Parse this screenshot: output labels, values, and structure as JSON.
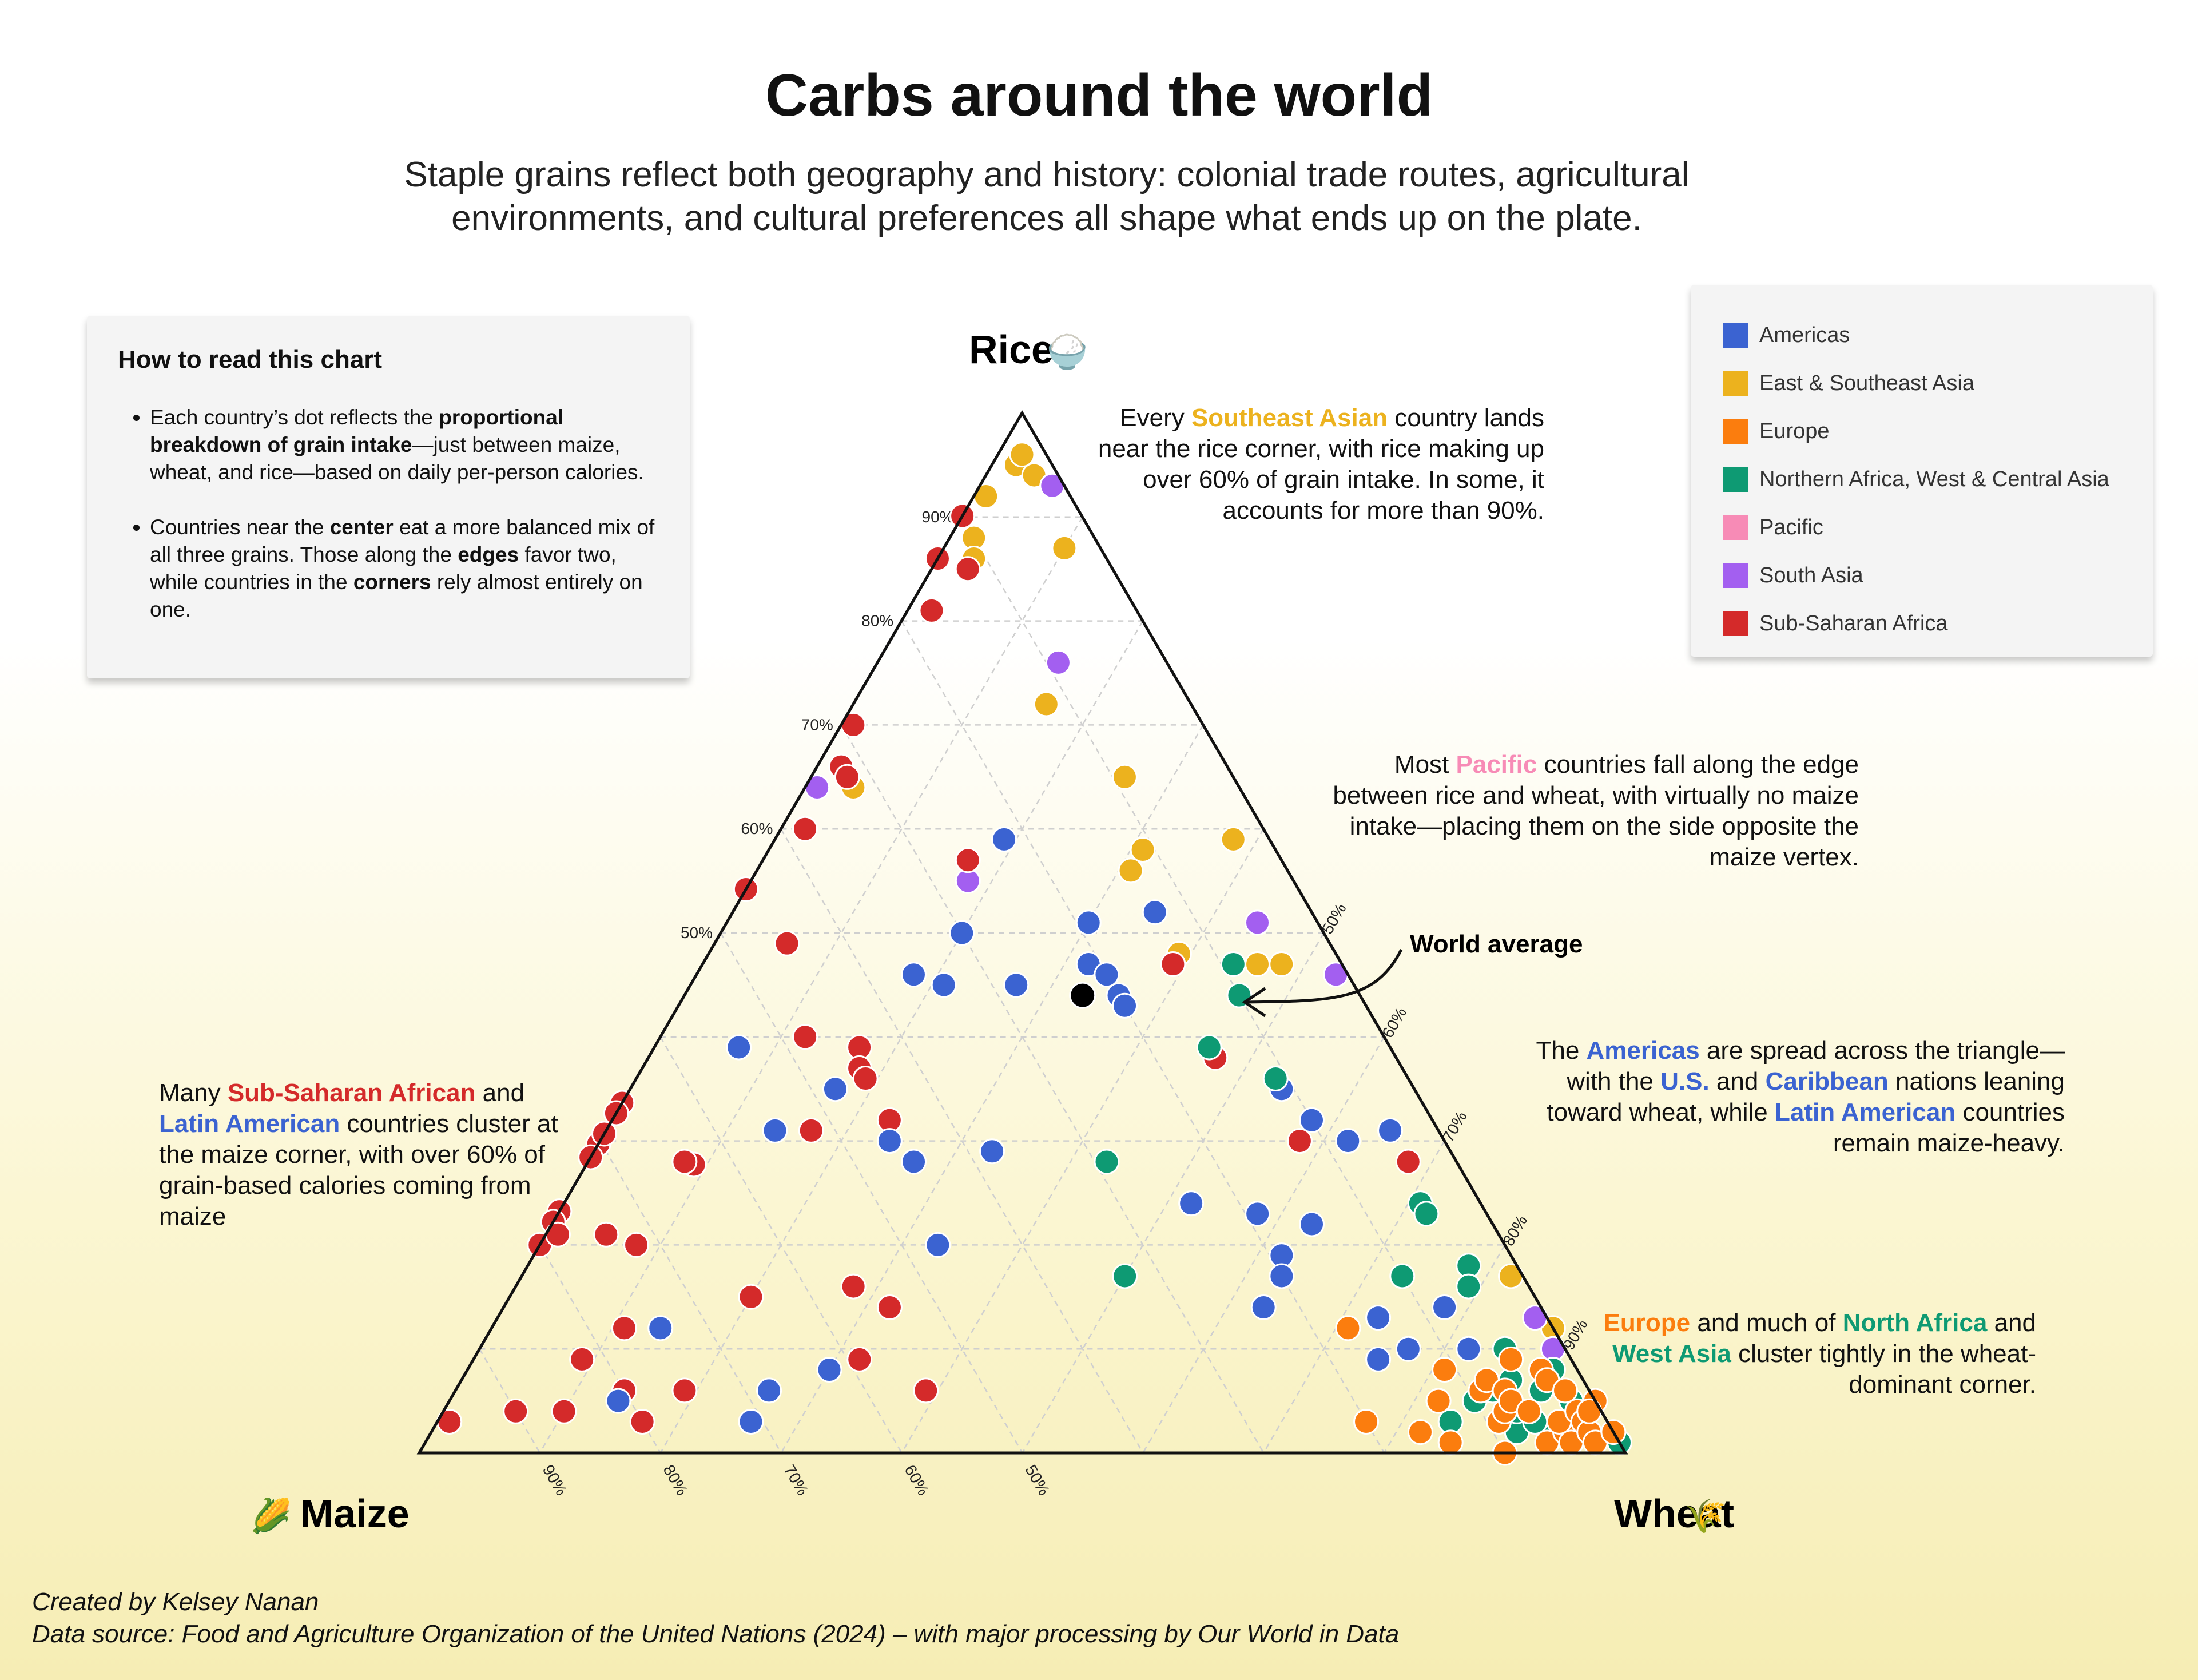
{
  "title": "Carbs around the world",
  "subtitle": "Staple grains reflect both geography and history: colonial trade routes, agricultural environments, and cultural preferences all shape what ends up on the plate.",
  "howto": {
    "heading": "How to read this chart",
    "b1_pre": "Each country’s dot reflects the ",
    "b1_bold": "proportional breakdown of grain intake",
    "b1_post": "—just between maize, wheat, and rice—based on daily per-person calories.",
    "b2_a": "Countries near the ",
    "b2_center": "center",
    "b2_b": " eat a more balanced mix of all three grains. Those along the ",
    "b2_edges": "edges",
    "b2_c": " favor two, while countries in the ",
    "b2_corners": "corners",
    "b2_d": " rely almost entirely on one."
  },
  "legend": [
    {
      "label": "Americas",
      "color": "#3b63d1"
    },
    {
      "label": "East & Southeast Asia",
      "color": "#ecb21e"
    },
    {
      "label": "Europe",
      "color": "#fb7d0e"
    },
    {
      "label": "Northern Africa, West & Central Asia",
      "color": "#0e9a73"
    },
    {
      "label": "Pacific",
      "color": "#f78bb6"
    },
    {
      "label": "South Asia",
      "color": "#a35ff0"
    },
    {
      "label": "Sub-Saharan Africa",
      "color": "#d42a2a"
    }
  ],
  "annotations": {
    "sea_1": "Every ",
    "sea_hl": "Southeast Asian",
    "sea_2": " country lands near the rice corner, with rice making up over 60% of grain intake. In some, it accounts for more than 90%.",
    "pac_1": "Most ",
    "pac_hl": "Pacific",
    "pac_2": " countries fall along the edge between rice and wheat, with virtually no maize intake—placing them on the side opposite the maize vertex.",
    "world": "World average",
    "am_1": "The ",
    "am_hl1": "Americas",
    "am_2": " are spread across the triangle—with the ",
    "am_hl2": "U.S.",
    "am_3": " and ",
    "am_hl3": "Caribbean",
    "am_4": " nations leaning toward wheat, while ",
    "am_hl4": "Latin American",
    "am_5": " countries remain maize-heavy.",
    "ssa_1": "Many ",
    "ssa_hl1": "Sub-Saharan African",
    "ssa_2": " and ",
    "ssa_hl2": "Latin American",
    "ssa_3": " countries cluster at the maize corner, with over 60% of grain-based calories coming from maize",
    "eu_hl1": "Europe",
    "eu_1": " and much of ",
    "eu_hl2": "North Africa",
    "eu_2": " and ",
    "eu_hl3": "West Asia",
    "eu_3": " cluster tightly in the wheat-dominant corner."
  },
  "credits": {
    "author": "Created by Kelsey Nanan",
    "source": "Data source: Food and Agriculture Organization of the United Nations (2024) – with major processing by Our World in Data"
  },
  "chart_data": {
    "type": "ternary-scatter",
    "axes": {
      "top": "Rice",
      "left": "Maize",
      "right": "Wheat",
      "top_icon": "🍚",
      "left_icon": "🌽",
      "right_icon": "🌾"
    },
    "ticks": [
      50,
      60,
      70,
      80,
      90
    ],
    "tick_suffix": "%",
    "world_average": {
      "rice": 44,
      "maize": 23,
      "wheat": 33
    },
    "points": [
      {
        "r": 95,
        "m": 3,
        "w": 2,
        "g": 1
      },
      {
        "r": 96,
        "m": 2,
        "w": 2,
        "g": 1
      },
      {
        "r": 94,
        "m": 2,
        "w": 4,
        "g": 1
      },
      {
        "r": 92,
        "m": 7,
        "w": 1,
        "g": 1
      },
      {
        "r": 88,
        "m": 10,
        "w": 2,
        "g": 1
      },
      {
        "r": 86,
        "m": 11,
        "w": 3,
        "g": 1
      },
      {
        "r": 87,
        "m": 3,
        "w": 10,
        "g": 1
      },
      {
        "r": 72,
        "m": 12,
        "w": 16,
        "g": 1
      },
      {
        "r": 64,
        "m": 32,
        "w": 4,
        "g": 1
      },
      {
        "r": 65,
        "m": 9,
        "w": 26,
        "g": 1
      },
      {
        "r": 58,
        "m": 11,
        "w": 31,
        "g": 1
      },
      {
        "r": 56,
        "m": 13,
        "w": 31,
        "g": 1
      },
      {
        "r": 59,
        "m": 3,
        "w": 38,
        "g": 1
      },
      {
        "r": 48,
        "m": 13,
        "w": 39,
        "g": 1
      },
      {
        "r": 47,
        "m": 7,
        "w": 46,
        "g": 1
      },
      {
        "r": 47,
        "m": 5,
        "w": 48,
        "g": 1
      },
      {
        "r": 17,
        "m": 1,
        "w": 82,
        "g": 1
      },
      {
        "r": 12,
        "m": 0,
        "w": 88,
        "g": 1
      },
      {
        "r": 93,
        "m": 1,
        "w": 6,
        "g": 5
      },
      {
        "r": 76,
        "m": 9,
        "w": 15,
        "g": 5
      },
      {
        "r": 64,
        "m": 35,
        "w": 1,
        "g": 5
      },
      {
        "r": 55,
        "m": 27,
        "w": 18,
        "g": 5
      },
      {
        "r": 51,
        "m": 5,
        "w": 44,
        "g": 5
      },
      {
        "r": 46,
        "m": 1,
        "w": 53,
        "g": 5
      },
      {
        "r": 13,
        "m": 1,
        "w": 86,
        "g": 5
      },
      {
        "r": 10,
        "m": 1,
        "w": 89,
        "g": 5
      },
      {
        "r": 91,
        "m": 10,
        "w": 0,
        "g": 6
      },
      {
        "r": 86,
        "m": 14,
        "w": 0,
        "g": 6
      },
      {
        "r": 85,
        "m": 12,
        "w": 3,
        "g": 6
      },
      {
        "r": 81,
        "m": 17,
        "w": 2,
        "g": 6
      },
      {
        "r": 70,
        "m": 29,
        "w": 1,
        "g": 6
      },
      {
        "r": 66,
        "m": 32,
        "w": 2,
        "g": 6
      },
      {
        "r": 65,
        "m": 32,
        "w": 3,
        "g": 6
      },
      {
        "r": 60,
        "m": 38,
        "w": 2,
        "g": 6
      },
      {
        "r": 57,
        "m": 26,
        "w": 17,
        "g": 6
      },
      {
        "r": 58,
        "m": 49,
        "w": 0,
        "g": 6
      },
      {
        "r": 49,
        "m": 45,
        "w": 6,
        "g": 6
      },
      {
        "r": 47,
        "m": 14,
        "w": 39,
        "g": 6
      },
      {
        "r": 40,
        "m": 48,
        "w": 12,
        "g": 6
      },
      {
        "r": 39,
        "m": 44,
        "w": 17,
        "g": 6
      },
      {
        "r": 37,
        "m": 45,
        "w": 18,
        "g": 6
      },
      {
        "r": 36,
        "m": 45,
        "w": 19,
        "g": 6
      },
      {
        "r": 38,
        "m": 15,
        "w": 47,
        "g": 6
      },
      {
        "r": 34,
        "m": 67,
        "w": 0,
        "g": 6
      },
      {
        "r": 33,
        "m": 68,
        "w": 0,
        "g": 6
      },
      {
        "r": 32,
        "m": 45,
        "w": 23,
        "g": 6
      },
      {
        "r": 30,
        "m": 71,
        "w": 0,
        "g": 6
      },
      {
        "r": 31,
        "m": 52,
        "w": 17,
        "g": 6
      },
      {
        "r": 31,
        "m": 70,
        "w": 0,
        "g": 6
      },
      {
        "r": 29,
        "m": 73,
        "w": 0,
        "g": 6
      },
      {
        "r": 28,
        "m": 64,
        "w": 9,
        "g": 6
      },
      {
        "r": 28,
        "m": 64,
        "w": 8,
        "g": 6
      },
      {
        "r": 30,
        "m": 12,
        "w": 58,
        "g": 6
      },
      {
        "r": 28,
        "m": 4,
        "w": 68,
        "g": 6
      },
      {
        "r": 23,
        "m": 76,
        "w": 0,
        "g": 6
      },
      {
        "r": 22,
        "m": 77,
        "w": 0,
        "g": 6
      },
      {
        "r": 20,
        "m": 80,
        "w": 0,
        "g": 6
      },
      {
        "r": 21,
        "m": 74,
        "w": 5,
        "g": 6
      },
      {
        "r": 20,
        "m": 72,
        "w": 8,
        "g": 6
      },
      {
        "r": 21,
        "m": 78,
        "w": 1,
        "g": 6
      },
      {
        "r": 15,
        "m": 65,
        "w": 20,
        "g": 6
      },
      {
        "r": 16,
        "m": 56,
        "w": 28,
        "g": 6
      },
      {
        "r": 14,
        "m": 54,
        "w": 32,
        "g": 6
      },
      {
        "r": 12,
        "m": 77,
        "w": 11,
        "g": 6
      },
      {
        "r": 9,
        "m": 59,
        "w": 32,
        "g": 6
      },
      {
        "r": 6,
        "m": 75,
        "w": 19,
        "g": 6
      },
      {
        "r": 9,
        "m": 82,
        "w": 9,
        "g": 6
      },
      {
        "r": 6,
        "m": 80,
        "w": 14,
        "g": 6
      },
      {
        "r": 4,
        "m": 90,
        "w": 6,
        "g": 6
      },
      {
        "r": 6,
        "m": 55,
        "w": 39,
        "g": 6
      },
      {
        "r": 3,
        "m": 96,
        "w": 1,
        "g": 6
      },
      {
        "r": 4,
        "m": 86,
        "w": 10,
        "g": 6
      },
      {
        "r": 3,
        "m": 80,
        "w": 17,
        "g": 6
      },
      {
        "r": 59,
        "m": 22,
        "w": 19,
        "g": 0
      },
      {
        "r": 51,
        "m": 19,
        "w": 30,
        "g": 0
      },
      {
        "r": 52,
        "m": 13,
        "w": 35,
        "g": 0
      },
      {
        "r": 50,
        "m": 30,
        "w": 20,
        "g": 0
      },
      {
        "r": 46,
        "m": 36,
        "w": 18,
        "g": 0
      },
      {
        "r": 45,
        "m": 34,
        "w": 21,
        "g": 0
      },
      {
        "r": 45,
        "m": 28,
        "w": 27,
        "g": 0
      },
      {
        "r": 47,
        "m": 21,
        "w": 32,
        "g": 0
      },
      {
        "r": 46,
        "m": 20,
        "w": 34,
        "g": 0
      },
      {
        "r": 44,
        "m": 20,
        "w": 36,
        "g": 0
      },
      {
        "r": 43,
        "m": 20,
        "w": 37,
        "g": 0
      },
      {
        "r": 39,
        "m": 54,
        "w": 7,
        "g": 0
      },
      {
        "r": 35,
        "m": 48,
        "w": 17,
        "g": 0
      },
      {
        "r": 31,
        "m": 55,
        "w": 14,
        "g": 0
      },
      {
        "r": 30,
        "m": 46,
        "w": 24,
        "g": 0
      },
      {
        "r": 29,
        "m": 38,
        "w": 33,
        "g": 0
      },
      {
        "r": 28,
        "m": 45,
        "w": 27,
        "g": 0
      },
      {
        "r": 20,
        "m": 47,
        "w": 33,
        "g": 0
      },
      {
        "r": 12,
        "m": 74,
        "w": 14,
        "g": 0
      },
      {
        "r": 8,
        "m": 62,
        "w": 30,
        "g": 0
      },
      {
        "r": 6,
        "m": 68,
        "w": 26,
        "g": 0
      },
      {
        "r": 5,
        "m": 81,
        "w": 14,
        "g": 0
      },
      {
        "r": 3,
        "m": 71,
        "w": 26,
        "g": 0
      },
      {
        "r": 35,
        "m": 11,
        "w": 54,
        "g": 0
      },
      {
        "r": 32,
        "m": 10,
        "w": 58,
        "g": 0
      },
      {
        "r": 30,
        "m": 8,
        "w": 62,
        "g": 0
      },
      {
        "r": 24,
        "m": 24,
        "w": 52,
        "g": 0
      },
      {
        "r": 23,
        "m": 19,
        "w": 58,
        "g": 0
      },
      {
        "r": 22,
        "m": 15,
        "w": 63,
        "g": 0
      },
      {
        "r": 19,
        "m": 19,
        "w": 62,
        "g": 0
      },
      {
        "r": 14,
        "m": 23,
        "w": 63,
        "g": 0
      },
      {
        "r": 17,
        "m": 20,
        "w": 63,
        "g": 0
      },
      {
        "r": 13,
        "m": 14,
        "w": 73,
        "g": 0
      },
      {
        "r": 14,
        "m": 8,
        "w": 78,
        "g": 0
      },
      {
        "r": 9,
        "m": 16,
        "w": 75,
        "g": 0
      },
      {
        "r": 10,
        "m": 13,
        "w": 77,
        "g": 0
      },
      {
        "r": 10,
        "m": 8,
        "w": 82,
        "g": 0
      },
      {
        "r": 31,
        "m": 4,
        "w": 65,
        "g": 0
      },
      {
        "r": 47,
        "m": 9,
        "w": 44,
        "g": 3
      },
      {
        "r": 44,
        "m": 10,
        "w": 46,
        "g": 3
      },
      {
        "r": 39,
        "m": 15,
        "w": 46,
        "g": 3
      },
      {
        "r": 36,
        "m": 11,
        "w": 53,
        "g": 3
      },
      {
        "r": 28,
        "m": 29,
        "w": 43,
        "g": 3
      },
      {
        "r": 24,
        "m": 5,
        "w": 71,
        "g": 3
      },
      {
        "r": 23,
        "m": 5,
        "w": 72,
        "g": 3
      },
      {
        "r": 17,
        "m": 33,
        "w": 50,
        "g": 3
      },
      {
        "r": 18,
        "m": 4,
        "w": 78,
        "g": 3
      },
      {
        "r": 17,
        "m": 10,
        "w": 73,
        "g": 3
      },
      {
        "r": 16,
        "m": 5,
        "w": 79,
        "g": 3
      },
      {
        "r": 10,
        "m": 5,
        "w": 85,
        "g": 3
      },
      {
        "r": 7,
        "m": 6,
        "w": 87,
        "g": 3
      },
      {
        "r": 5,
        "m": 10,
        "w": 85,
        "g": 3
      },
      {
        "r": 3,
        "m": 4,
        "w": 93,
        "g": 3
      },
      {
        "r": 3,
        "m": 13,
        "w": 84,
        "g": 3
      },
      {
        "r": 2,
        "m": 8,
        "w": 90,
        "g": 3
      },
      {
        "r": 1,
        "m": 0,
        "w": 99,
        "g": 3
      },
      {
        "r": 4,
        "m": 7,
        "w": 89,
        "g": 3
      },
      {
        "r": 6,
        "m": 8,
        "w": 86,
        "g": 3
      },
      {
        "r": 8,
        "m": 2,
        "w": 90,
        "g": 3
      },
      {
        "r": 6,
        "m": 4,
        "w": 90,
        "g": 3
      },
      {
        "r": 3,
        "m": 3,
        "w": 94,
        "g": 3
      },
      {
        "r": 5,
        "m": 2,
        "w": 93,
        "g": 3
      },
      {
        "r": 2,
        "m": 5,
        "w": 93,
        "g": 3
      },
      {
        "r": 3,
        "m": 6,
        "w": 91,
        "g": 3
      },
      {
        "r": 5,
        "m": 13,
        "w": 82,
        "g": 3
      },
      {
        "r": 12,
        "m": 17,
        "w": 71,
        "g": 2
      },
      {
        "r": 3,
        "m": 20,
        "w": 77,
        "g": 2
      },
      {
        "r": 8,
        "m": 11,
        "w": 81,
        "g": 2
      },
      {
        "r": 5,
        "m": 13,
        "w": 82,
        "g": 2
      },
      {
        "r": 2,
        "m": 16,
        "w": 82,
        "g": 2
      },
      {
        "r": 1,
        "m": 14,
        "w": 85,
        "g": 2
      },
      {
        "r": 6,
        "m": 9,
        "w": 85,
        "g": 2
      },
      {
        "r": 3,
        "m": 9,
        "w": 88,
        "g": 2
      },
      {
        "r": 7,
        "m": 8,
        "w": 85,
        "g": 2
      },
      {
        "r": 6,
        "m": 7,
        "w": 87,
        "g": 2
      },
      {
        "r": 4,
        "m": 8,
        "w": 88,
        "g": 2
      },
      {
        "r": 0,
        "m": 10,
        "w": 90,
        "g": 2
      },
      {
        "r": 5,
        "m": 7,
        "w": 88,
        "g": 2
      },
      {
        "r": 1,
        "m": 6,
        "w": 93,
        "g": 2
      },
      {
        "r": 2,
        "m": 4,
        "w": 94,
        "g": 2
      },
      {
        "r": 3,
        "m": 4,
        "w": 93,
        "g": 2
      },
      {
        "r": 8,
        "m": 3,
        "w": 89,
        "g": 2
      },
      {
        "r": 7,
        "m": 3,
        "w": 90,
        "g": 2
      },
      {
        "r": 4,
        "m": 6,
        "w": 90,
        "g": 2
      },
      {
        "r": 1,
        "m": 4,
        "w": 95,
        "g": 2
      },
      {
        "r": 9,
        "m": 5,
        "w": 86,
        "g": 2
      },
      {
        "r": 6,
        "m": 2,
        "w": 92,
        "g": 2
      },
      {
        "r": 4,
        "m": 2,
        "w": 94,
        "g": 2
      },
      {
        "r": 3,
        "m": 2,
        "w": 95,
        "g": 2
      },
      {
        "r": 2,
        "m": 2,
        "w": 96,
        "g": 2
      },
      {
        "r": 5,
        "m": 0,
        "w": 95,
        "g": 2
      },
      {
        "r": 4,
        "m": 1,
        "w": 95,
        "g": 2
      },
      {
        "r": 1,
        "m": 2,
        "w": 97,
        "g": 2
      },
      {
        "r": 2,
        "m": 0,
        "w": 98,
        "g": 2
      }
    ]
  }
}
